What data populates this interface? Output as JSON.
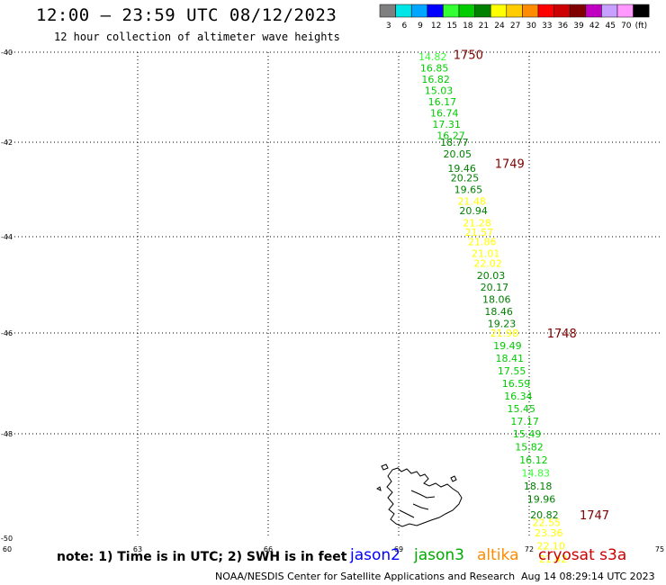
{
  "header": {
    "title": "12:00 – 23:59 UTC 08/12/2023",
    "subtitle": "12 hour collection of altimeter wave heights"
  },
  "legend": {
    "units": "(ft)",
    "swatches": [
      {
        "label": "3",
        "color": "#7f7f7f"
      },
      {
        "label": "6",
        "color": "#00e5e5"
      },
      {
        "label": "9",
        "color": "#00a6ff"
      },
      {
        "label": "12",
        "color": "#0000ff"
      },
      {
        "label": "15",
        "color": "#33ff33"
      },
      {
        "label": "18",
        "color": "#00cc00"
      },
      {
        "label": "21",
        "color": "#008000"
      },
      {
        "label": "24",
        "color": "#ffff00"
      },
      {
        "label": "27",
        "color": "#ffcc00"
      },
      {
        "label": "30",
        "color": "#ff8c00"
      },
      {
        "label": "33",
        "color": "#ff0000"
      },
      {
        "label": "36",
        "color": "#cc0000"
      },
      {
        "label": "39",
        "color": "#800000"
      },
      {
        "label": "42",
        "color": "#c000c0"
      },
      {
        "label": "45",
        "color": "#c8a0ff"
      },
      {
        "label": "70",
        "color": "#ff99ff"
      },
      {
        "label": "",
        "color": "#000000"
      }
    ]
  },
  "axes": {
    "x_ticks": [
      "60",
      "63",
      "66",
      "69",
      "72",
      "75"
    ],
    "y_ticks": [
      "-40",
      "-42",
      "-44",
      "-46",
      "-48",
      "-50"
    ]
  },
  "map": {
    "lon_range": [
      60,
      75
    ],
    "lat_range": [
      -40,
      -50
    ],
    "readings": [
      {
        "lat": -40.1,
        "lon": 69.78,
        "value": "14.82",
        "color": "#33ff33"
      },
      {
        "lat": -40.35,
        "lon": 69.82,
        "value": "16.85",
        "color": "#00cc00"
      },
      {
        "lat": -40.6,
        "lon": 69.85,
        "value": "16.82",
        "color": "#00cc00"
      },
      {
        "lat": -40.85,
        "lon": 69.92,
        "value": "15.03",
        "color": "#00cc00"
      },
      {
        "lat": -41.1,
        "lon": 70.0,
        "value": "16.17",
        "color": "#00cc00"
      },
      {
        "lat": -41.35,
        "lon": 70.05,
        "value": "16.74",
        "color": "#00cc00"
      },
      {
        "lat": -41.6,
        "lon": 70.1,
        "value": "17.31",
        "color": "#00cc00"
      },
      {
        "lat": -41.85,
        "lon": 70.2,
        "value": "16.27",
        "color": "#00cc00"
      },
      {
        "lat": -42.0,
        "lon": 70.28,
        "value": "18.77",
        "color": "#008000"
      },
      {
        "lat": -42.25,
        "lon": 70.35,
        "value": "20.05",
        "color": "#008000"
      },
      {
        "lat": -42.55,
        "lon": 70.45,
        "value": "19.46",
        "color": "#008000"
      },
      {
        "lat": -42.75,
        "lon": 70.52,
        "value": "20.25",
        "color": "#008000"
      },
      {
        "lat": -43.0,
        "lon": 70.6,
        "value": "19.65",
        "color": "#008000"
      },
      {
        "lat": -43.25,
        "lon": 70.68,
        "value": "21.48",
        "color": "#ffff00"
      },
      {
        "lat": -43.45,
        "lon": 70.72,
        "value": "20.94",
        "color": "#008000"
      },
      {
        "lat": -43.7,
        "lon": 70.8,
        "value": "21.28",
        "color": "#ffff00"
      },
      {
        "lat": -43.9,
        "lon": 70.85,
        "value": "21.57",
        "color": "#ffff00"
      },
      {
        "lat": -44.1,
        "lon": 70.92,
        "value": "21.86",
        "color": "#ffff00"
      },
      {
        "lat": -44.35,
        "lon": 71.0,
        "value": "21.01",
        "color": "#ffff00"
      },
      {
        "lat": -44.55,
        "lon": 71.05,
        "value": "22.02",
        "color": "#ffff00"
      },
      {
        "lat": -44.8,
        "lon": 71.12,
        "value": "20.03",
        "color": "#008000"
      },
      {
        "lat": -45.05,
        "lon": 71.2,
        "value": "20.17",
        "color": "#008000"
      },
      {
        "lat": -45.3,
        "lon": 71.25,
        "value": "18.06",
        "color": "#008000"
      },
      {
        "lat": -45.55,
        "lon": 71.3,
        "value": "18.46",
        "color": "#008000"
      },
      {
        "lat": -45.8,
        "lon": 71.37,
        "value": "19.23",
        "color": "#008000"
      },
      {
        "lat": -46.0,
        "lon": 71.43,
        "value": "21.98",
        "color": "#ffff00"
      },
      {
        "lat": -46.25,
        "lon": 71.5,
        "value": "19.49",
        "color": "#00cc00"
      },
      {
        "lat": -46.5,
        "lon": 71.55,
        "value": "18.41",
        "color": "#00cc00"
      },
      {
        "lat": -46.75,
        "lon": 71.6,
        "value": "17.55",
        "color": "#00cc00"
      },
      {
        "lat": -47.0,
        "lon": 71.7,
        "value": "16.59",
        "color": "#00cc00"
      },
      {
        "lat": -47.25,
        "lon": 71.75,
        "value": "16.34",
        "color": "#00cc00"
      },
      {
        "lat": -47.5,
        "lon": 71.82,
        "value": "15.45",
        "color": "#00cc00"
      },
      {
        "lat": -47.75,
        "lon": 71.9,
        "value": "17.17",
        "color": "#00cc00"
      },
      {
        "lat": -48.0,
        "lon": 71.95,
        "value": "15.49",
        "color": "#00cc00"
      },
      {
        "lat": -48.25,
        "lon": 72.0,
        "value": "15.82",
        "color": "#00cc00"
      },
      {
        "lat": -48.5,
        "lon": 72.1,
        "value": "16.12",
        "color": "#00cc00"
      },
      {
        "lat": -48.75,
        "lon": 72.15,
        "value": "14.83",
        "color": "#33ff33"
      },
      {
        "lat": -49.0,
        "lon": 72.2,
        "value": "18.18",
        "color": "#008000"
      },
      {
        "lat": -49.25,
        "lon": 72.28,
        "value": "19.96",
        "color": "#008000"
      },
      {
        "lat": -49.55,
        "lon": 72.35,
        "value": "20.82",
        "color": "#008000"
      },
      {
        "lat": -49.7,
        "lon": 72.4,
        "value": "22.55",
        "color": "#ffff00"
      },
      {
        "lat": -49.9,
        "lon": 72.45,
        "value": "23.36",
        "color": "#ffff00"
      },
      {
        "lat": -50.15,
        "lon": 72.5,
        "value": "22.10",
        "color": "#ffff00"
      },
      {
        "lat": -50.4,
        "lon": 72.55,
        "value": "21.42",
        "color": "#ffff00"
      }
    ],
    "time_markers": [
      {
        "lat": -40.05,
        "lon": 70.6,
        "label": "1750"
      },
      {
        "lat": -42.45,
        "lon": 71.55,
        "label": "1749"
      },
      {
        "lat": -46.0,
        "lon": 72.75,
        "label": "1748"
      },
      {
        "lat": -49.55,
        "lon": 73.5,
        "label": "1747"
      }
    ]
  },
  "footer": {
    "note": "note:  1) Time is in UTC;  2) SWH is in feet",
    "satellites": [
      {
        "name": "jason2",
        "color": "#0000ff"
      },
      {
        "name": "jason3",
        "color": "#00aa00"
      },
      {
        "name": "altika",
        "color": "#ff8c00"
      },
      {
        "name": "cryosat s3a",
        "color": "#cc0000"
      }
    ],
    "credit": "NOAA/NESDIS Center for Satellite Applications and Research",
    "timestamp": "Aug 14 08:29:14 UTC 2023"
  }
}
